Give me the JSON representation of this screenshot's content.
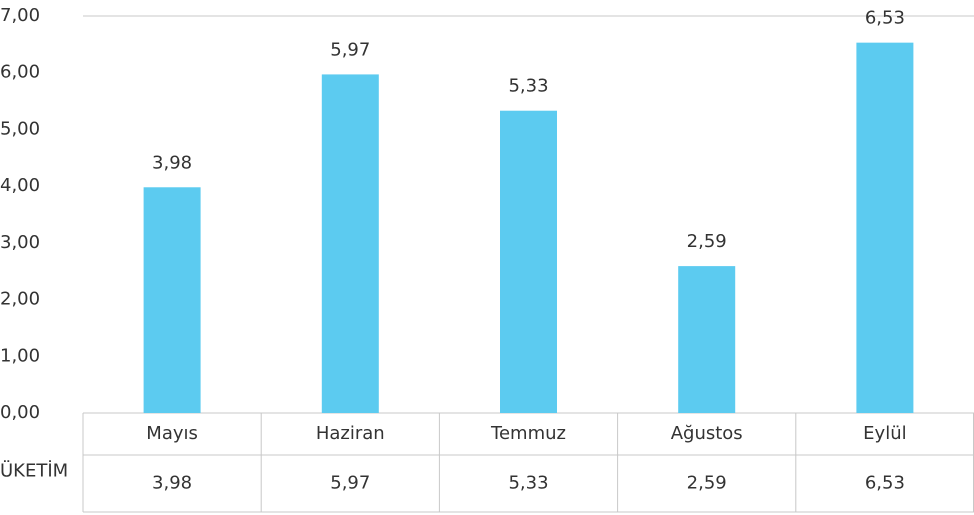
{
  "chart_data": {
    "type": "bar",
    "categories": [
      "Mayıs",
      "Haziran",
      "Temmuz",
      "Ağustos",
      "Eylül"
    ],
    "series": [
      {
        "name": "ÜKETİM",
        "color": "#5ccbf0",
        "values": [
          3.98,
          5.97,
          5.33,
          2.59,
          6.53
        ],
        "value_labels": [
          "3,98",
          "5,97",
          "5,33",
          "2,59",
          "6,53"
        ]
      }
    ],
    "ylim": [
      0,
      7
    ],
    "yticks": [
      {
        "value": 0,
        "label": "0,00"
      },
      {
        "value": 1,
        "label": "1,00"
      },
      {
        "value": 2,
        "label": "2,00"
      },
      {
        "value": 3,
        "label": "3,00"
      },
      {
        "value": 4,
        "label": "4,00"
      },
      {
        "value": 5,
        "label": "5,00"
      },
      {
        "value": 6,
        "label": "6,00"
      },
      {
        "value": 7,
        "label": "7,00"
      }
    ],
    "grid": false
  }
}
